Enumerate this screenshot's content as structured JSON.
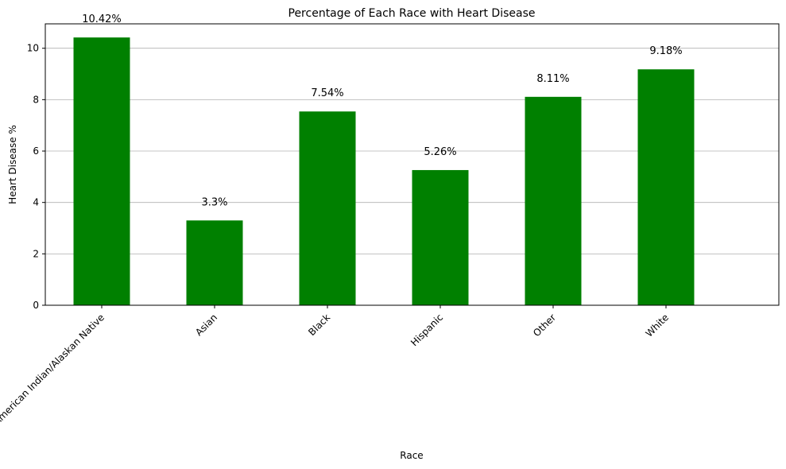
{
  "chart_data": {
    "type": "bar",
    "title": "Percentage of Each Race with Heart Disease",
    "xlabel": "Race",
    "ylabel": "Heart Disease %",
    "categories": [
      "American Indian/Alaskan Native",
      "Asian",
      "Black",
      "Hispanic",
      "Other",
      "White"
    ],
    "values": [
      10.42,
      3.3,
      7.54,
      5.26,
      8.11,
      9.18
    ],
    "data_labels": [
      "10.42%",
      "3.3%",
      "7.54%",
      "5.26%",
      "8.11%",
      "9.18%"
    ],
    "yticks": [
      0,
      2,
      4,
      6,
      8,
      10
    ],
    "ylim": [
      0,
      10.95
    ],
    "grid": "y-axis horizontal lines",
    "legend": "none",
    "bar_color": "#008000"
  }
}
